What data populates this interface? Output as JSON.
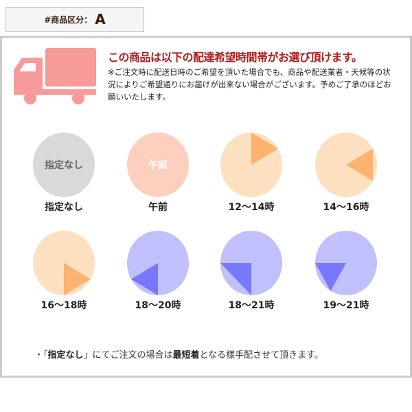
{
  "category": {
    "label": "#商品区分：",
    "value": "A"
  },
  "header": {
    "headline": "この商品は以下の配達希望時間帯がお選び頂けます。",
    "notice": "※ご注文時に配送日時のご希望を頂いた場合でも、商品や配送業者・天候等の状況によりご希望通りにお届けが出来ない場合がございます。予めご了承のほどお願いいたします。"
  },
  "colors": {
    "truck": "#f79a9a",
    "headline": "#b01c1c",
    "none": "#d9d9d9",
    "morning": "#fccfbf",
    "day_bg": "#fde0c0",
    "day_fg": "#fcb370",
    "night_bg": "#c0c0fc",
    "night_fg": "#7878fc"
  },
  "slots": [
    {
      "label": "指定なし",
      "inner_label": "指定なし",
      "type": "none"
    },
    {
      "label": "午前",
      "inner_label": "午前",
      "type": "morning"
    },
    {
      "label": "12〜14時",
      "type": "day",
      "start_hour": 12,
      "end_hour": 14
    },
    {
      "label": "14〜16時",
      "type": "day",
      "start_hour": 14,
      "end_hour": 16
    },
    {
      "label": "16〜18時",
      "type": "day",
      "start_hour": 16,
      "end_hour": 18
    },
    {
      "label": "18〜20時",
      "type": "night",
      "start_hour": 18,
      "end_hour": 20
    },
    {
      "label": "18〜21時",
      "type": "night",
      "start_hour": 18,
      "end_hour": 21
    },
    {
      "label": "19〜21時",
      "type": "night",
      "start_hour": 19,
      "end_hour": 21
    }
  ],
  "footer": {
    "bullet": "・「",
    "bold1": "指定なし",
    "mid": "」にてご注文の場合は",
    "bold2": "最短着",
    "end": "となる様手配させて頂きます。"
  }
}
